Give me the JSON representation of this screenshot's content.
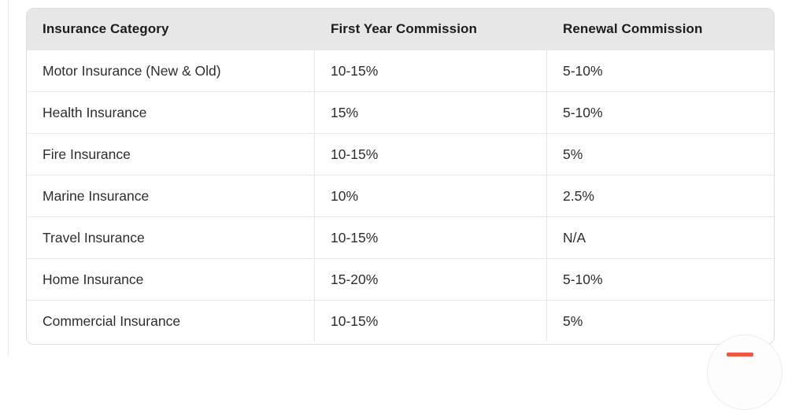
{
  "table": {
    "columns": [
      "Insurance Category",
      "First Year Commission",
      "Renewal Commission"
    ],
    "rows": [
      [
        "Motor Insurance (New & Old)",
        "10-15%",
        "5-10%"
      ],
      [
        "Health Insurance",
        "15%",
        "5-10%"
      ],
      [
        "Fire Insurance",
        "10-15%",
        "5%"
      ],
      [
        "Marine Insurance",
        "10%",
        "2.5%"
      ],
      [
        "Travel Insurance",
        "10-15%",
        "N/A"
      ],
      [
        "Home Insurance",
        "15-20%",
        "5-10%"
      ],
      [
        "Commercial Insurance",
        "10-15%",
        "5%"
      ]
    ]
  },
  "chart_data": {
    "type": "table",
    "title": "",
    "columns": [
      "Insurance Category",
      "First Year Commission",
      "Renewal Commission"
    ],
    "rows": [
      [
        "Motor Insurance (New & Old)",
        "10-15%",
        "5-10%"
      ],
      [
        "Health Insurance",
        "15%",
        "5-10%"
      ],
      [
        "Fire Insurance",
        "10-15%",
        "5%"
      ],
      [
        "Marine Insurance",
        "10%",
        "2.5%"
      ],
      [
        "Travel Insurance",
        "10-15%",
        "N/A"
      ],
      [
        "Home Insurance",
        "15-20%",
        "5-10%"
      ],
      [
        "Commercial Insurance",
        "10-15%",
        "5%"
      ]
    ]
  },
  "colors": {
    "header_bg": "#e7e7e7",
    "row_border": "#e9e9e9",
    "card_border": "#dcdcdc",
    "header_text": "#1c1c1c",
    "body_text": "#2e2e2e",
    "chat_accent": "#f05742",
    "page_bg": "#ffffff"
  }
}
